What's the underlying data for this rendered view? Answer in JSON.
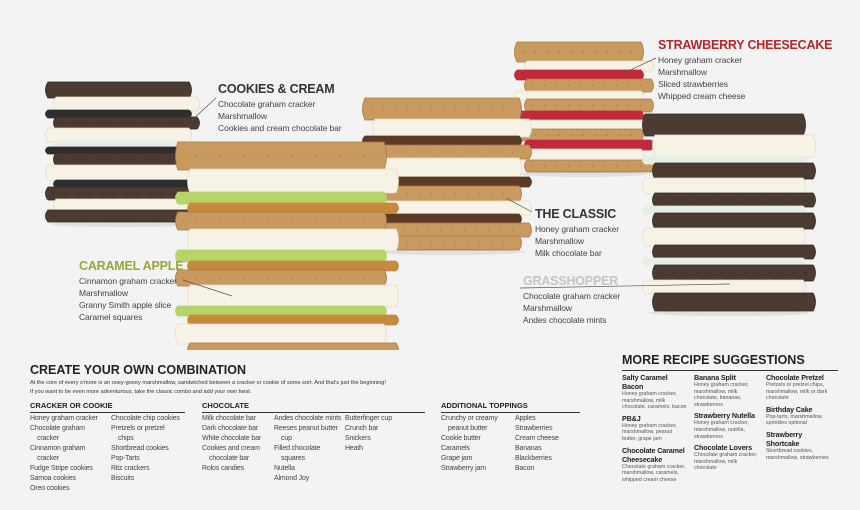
{
  "callouts": [
    {
      "title": "COOKIES & CREAM",
      "lines": [
        "Chocolate graham cracker",
        "Marshmallow",
        "Cookies and cream chocolate bar"
      ]
    },
    {
      "title": "STRAWBERRY CHEESECAKE",
      "lines": [
        "Honey graham cracker",
        "Marshmallow",
        "Sliced strawberries",
        "Whipped cream cheese"
      ]
    },
    {
      "title": "THE CLASSIC",
      "lines": [
        "Honey graham cracker",
        "Marshmallow",
        "Milk chocolate bar"
      ]
    },
    {
      "title": "CARAMEL APPLE",
      "lines": [
        "Cinnamon graham cracker",
        "Marshmallow",
        "Granny Smith apple slice",
        "Caramel squares"
      ]
    },
    {
      "title": "GRASSHOPPER",
      "lines": [
        "Chocolate graham cracker",
        "Marshmallow",
        "Andes chocolate mints"
      ]
    }
  ],
  "create": {
    "title": "CREATE YOUR OWN COMBINATION",
    "intro": [
      "At the core of every s'more is an ooey-gooey marshmallow, sandwiched between a cracker or cookie of some sort. And that's just the beginning!",
      "If you want to be even more adventurous, take the classic combo and add your own twist."
    ],
    "groups": [
      {
        "heading": "CRACKER OR COOKIE",
        "columns": [
          [
            "Honey graham cracker",
            "Chocolate graham cracker",
            "Cinnamon graham cracker",
            "Fudge Stripe cookies",
            "Samoa cookies",
            "Oreo cookies"
          ],
          [
            "Chocolate chip cookies",
            "Pretzels or pretzel chips",
            "Shortbread cookies",
            "Pop-Tarts",
            "Ritz crackers",
            "Biscuits"
          ]
        ]
      },
      {
        "heading": "CHOCOLATE",
        "columns": [
          [
            "Milk chocolate bar",
            "Dark chocolate bar",
            "White chocolate bar",
            "Cookies and cream chocolate bar",
            "Rolos candies"
          ],
          [
            "Andes chocolate mints",
            "Reeses peanut butter cup",
            "Filled chocolate squares",
            "Nutella",
            "Almond Joy"
          ],
          [
            "Butterfinger cup",
            "Crunch bar",
            "Snickers",
            "Heath"
          ]
        ]
      },
      {
        "heading": "ADDITIONAL TOPPINGS",
        "columns": [
          [
            "Crunchy or creamy peanut butter",
            "Cookie butter",
            "Caramels",
            "Grape jam",
            "Strawberry jam"
          ],
          [
            "Apples",
            "Strawberries",
            "Cream cheese",
            "Bananas",
            "Blackberries",
            "Bacon"
          ]
        ]
      }
    ]
  },
  "more": {
    "title": "MORE RECIPE SUGGESTIONS",
    "columns": [
      [
        {
          "name": "Salty Caramel Bacon",
          "desc": "Honey graham cracker, marshmallow, milk chocolate, caramels, bacon"
        },
        {
          "name": "PB&J",
          "desc": "Honey graham cracker, marshmallow, peanut butter, grape jam"
        },
        {
          "name": "Chocolate Caramel Cheesecake",
          "desc": "Chocolate graham cracker, marshmallow, caramels, whipped cream cheese"
        }
      ],
      [
        {
          "name": "Banana Split",
          "desc": "Honey graham cracker, marshmallow, milk chocolate, bananas, strawberries"
        },
        {
          "name": "Strawberry Nutella",
          "desc": "Honey graham cracker, marshmallow, nutella, strawberries"
        },
        {
          "name": "Chocolate Lovers",
          "desc": "Chocolate graham cracker, marshmallow, milk chocolate"
        }
      ],
      [
        {
          "name": "Chocolate Pretzel",
          "desc": "Pretzels or pretzel chips, marshmallow, milk or dark chocolate"
        },
        {
          "name": "Birthday Cake",
          "desc": "Pop-tarts, marshmallow, sprinkles optional"
        },
        {
          "name": "Strawberry Shortcake",
          "desc": "Shortbread cookies, marshmallow, strawberries"
        }
      ]
    ]
  }
}
